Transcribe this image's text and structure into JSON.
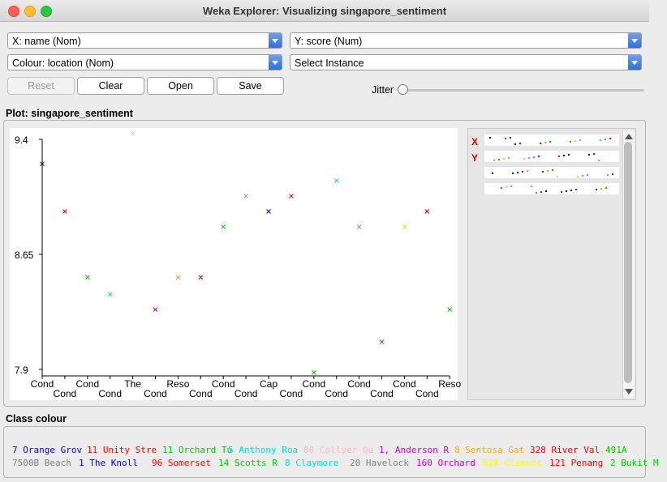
{
  "window": {
    "title": "Weka Explorer: Visualizing singapore_sentiment"
  },
  "controls": {
    "x_axis": "X: name (Nom)",
    "y_axis": "Y: score (Num)",
    "colour": "Colour: location (Nom)",
    "instance": "Select Instance",
    "reset": "Reset",
    "clear": "Clear",
    "open": "Open",
    "save": "Save",
    "jitter": "Jitter",
    "jitter_value": 0
  },
  "plot_label": "Plot: singapore_sentiment",
  "class_colour_label": "Class colour",
  "chart_data": {
    "type": "scatter",
    "ylim": [
      7.9,
      9.4
    ],
    "y_ticks": [
      "9.4",
      "8.65",
      "7.9"
    ],
    "x_tick_labels": [
      "Cond",
      "Cond",
      "Cond",
      "Cond",
      "The",
      "Cond",
      "Reso",
      "Cond",
      "Cond",
      "Cond",
      "Cap",
      "Cond",
      "Cond",
      "Cond",
      "Cond",
      "Cond",
      "Cond",
      "Cond",
      "Reso"
    ],
    "points": [
      {
        "x": 0,
        "y": 9.24,
        "color": "#0000aa"
      },
      {
        "x": 1,
        "y": 8.93,
        "color": "#dd0000"
      },
      {
        "x": 2,
        "y": 8.5,
        "color": "#00bb00"
      },
      {
        "x": 3,
        "y": 8.39,
        "color": "#22cccc"
      },
      {
        "x": 4,
        "y": 9.44,
        "color": "#cccccc"
      },
      {
        "x": 5,
        "y": 8.29,
        "color": "#aa00aa"
      },
      {
        "x": 6,
        "y": 8.5,
        "color": "#ff9900"
      },
      {
        "x": 7,
        "y": 8.5,
        "color": "#dd0000"
      },
      {
        "x": 8,
        "y": 8.83,
        "color": "#00bb00"
      },
      {
        "x": 9,
        "y": 9.03,
        "color": "#888888"
      },
      {
        "x": 10,
        "y": 8.93,
        "color": "#0000aa"
      },
      {
        "x": 11,
        "y": 9.03,
        "color": "#dd0000"
      },
      {
        "x": 12,
        "y": 7.88,
        "color": "#00bb00"
      },
      {
        "x": 13,
        "y": 9.13,
        "color": "#22cccc"
      },
      {
        "x": 14,
        "y": 8.83,
        "color": "#888888"
      },
      {
        "x": 15,
        "y": 8.08,
        "color": "#aa00aa"
      },
      {
        "x": 16,
        "y": 8.83,
        "color": "#dddd00"
      },
      {
        "x": 17,
        "y": 8.93,
        "color": "#aa0000"
      },
      {
        "x": 18,
        "y": 8.29,
        "color": "#00bb00"
      }
    ]
  },
  "thumbnails": {
    "labels": [
      "X",
      "Y"
    ],
    "colors": [
      "#000000",
      "#dd0000",
      "#00bb00",
      "#22cccc",
      "#aa00aa",
      "#0000aa",
      "#ff9900",
      "#dddd00",
      "#888888"
    ]
  },
  "legend": {
    "rows": [
      [
        {
          "text": "7 Orange Grov",
          "color": "#0000ff",
          "width": 92
        },
        {
          "text": "11 Unity Stre",
          "color": "#ff0000",
          "width": 93
        },
        {
          "text": "11 Orchard Tu",
          "color": "#00cc00",
          "width": 81
        },
        {
          "text": "5 Anthony Roa",
          "color": "#00dddd",
          "width": 93
        },
        {
          "text": "80 Collyer Qu",
          "color": "#ffb6c1",
          "width": 93
        },
        {
          "text": "1, Anderson R",
          "color": "#cc00cc",
          "width": 93
        },
        {
          "text": "8 Sentosa Gat",
          "color": "#ffaa00",
          "width": 93
        },
        {
          "text": "328 River Val",
          "color": "#ff0000",
          "width": 93
        },
        {
          "text": "491A",
          "color": "#00cc00",
          "width": 40
        }
      ],
      [
        {
          "text": "7500B Beach",
          "color": "#808080",
          "width": 82
        },
        {
          "text": "1 The Knoll",
          "color": "#0000ff",
          "width": 90
        },
        {
          "text": "96 Somerset",
          "color": "#ff0000",
          "width": 82
        },
        {
          "text": "14 Scotts R",
          "color": "#00cc00",
          "width": 82
        },
        {
          "text": "8 Claymore",
          "color": "#00dddd",
          "width": 80
        },
        {
          "text": "20 Havelock",
          "color": "#808080",
          "width": 82
        },
        {
          "text": "160 Orchard",
          "color": "#cc00cc",
          "width": 82
        },
        {
          "text": "62A Clemenc",
          "color": "#ffff00",
          "width": 82
        },
        {
          "text": "121 Penang",
          "color": "#ff0000",
          "width": 75
        },
        {
          "text": "2 Bukit M",
          "color": "#00cc00",
          "width": 70
        }
      ]
    ]
  }
}
